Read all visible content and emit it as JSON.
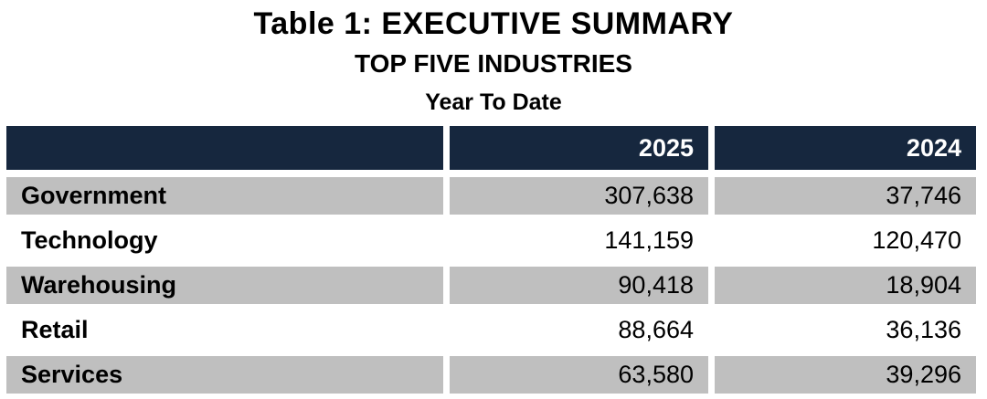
{
  "titles": {
    "main": "Table 1: EXECUTIVE SUMMARY",
    "subtitle": "TOP FIVE INDUSTRIES",
    "period": "Year To Date"
  },
  "table": {
    "columns": [
      "",
      "2025",
      "2024"
    ],
    "rows": [
      {
        "label": "Government",
        "v2025": "307,638",
        "v2024": "37,746"
      },
      {
        "label": "Technology",
        "v2025": "141,159",
        "v2024": "120,470"
      },
      {
        "label": "Warehousing",
        "v2025": "90,418",
        "v2024": "18,904"
      },
      {
        "label": "Retail",
        "v2025": "88,664",
        "v2024": "36,136"
      },
      {
        "label": "Services",
        "v2025": "63,580",
        "v2024": "39,296"
      }
    ]
  },
  "colors": {
    "header_bg": "#16273e",
    "header_text": "#ffffff",
    "row_alt_bg": "#bfbfbf",
    "row_bg": "#ffffff",
    "body_text": "#000000"
  },
  "chart_data": {
    "type": "table",
    "title": "Table 1: EXECUTIVE SUMMARY",
    "subtitle": "TOP FIVE INDUSTRIES",
    "period": "Year To Date",
    "columns": [
      "",
      "2025",
      "2024"
    ],
    "rows": [
      [
        "Government",
        307638,
        37746
      ],
      [
        "Technology",
        141159,
        120470
      ],
      [
        "Warehousing",
        90418,
        18904
      ],
      [
        "Retail",
        88664,
        36136
      ],
      [
        "Services",
        63580,
        39296
      ]
    ]
  }
}
